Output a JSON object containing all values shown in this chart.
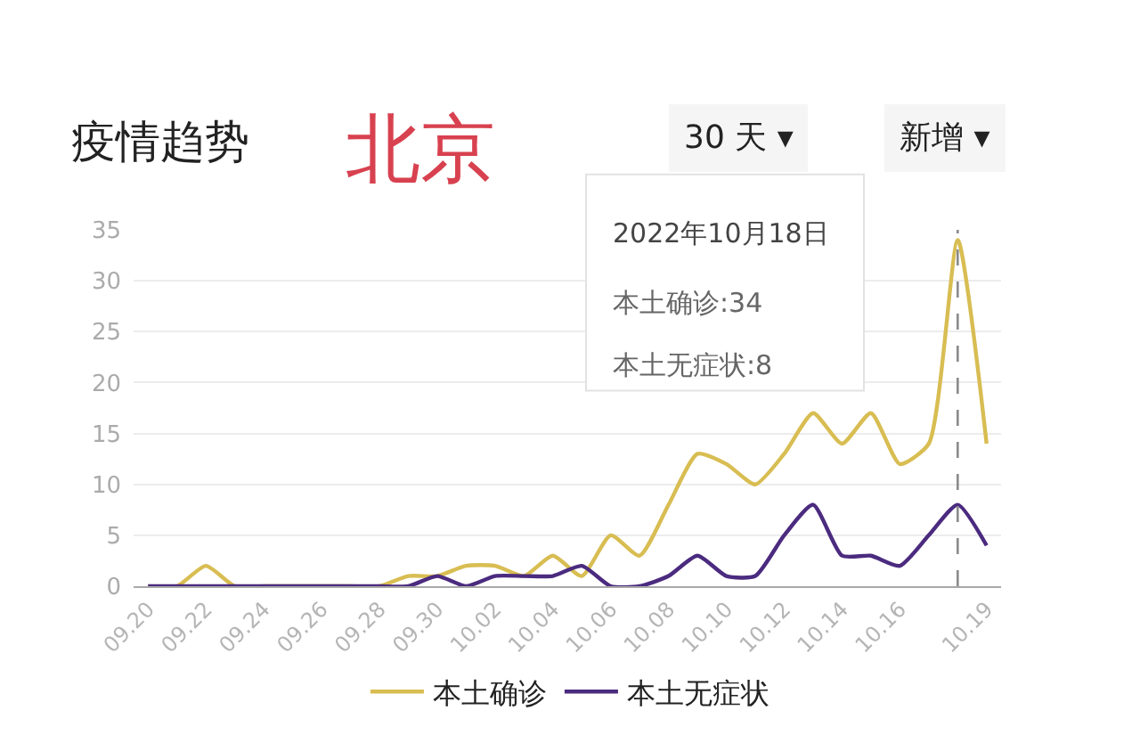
{
  "chart_data": {
    "type": "line",
    "title": "疫情趋势",
    "subtitle": "北京",
    "x": [
      "2022-09-20",
      "2022-09-21",
      "2022-09-22",
      "2022-09-23",
      "2022-09-24",
      "2022-09-25",
      "2022-09-26",
      "2022-09-27",
      "2022-09-28",
      "2022-09-29",
      "2022-09-30",
      "2022-10-01",
      "2022-10-02",
      "2022-10-03",
      "2022-10-04",
      "2022-10-05",
      "2022-10-06",
      "2022-10-07",
      "2022-10-08",
      "2022-10-09",
      "2022-10-10",
      "2022-10-11",
      "2022-10-12",
      "2022-10-13",
      "2022-10-14",
      "2022-10-15",
      "2022-10-16",
      "2022-10-17",
      "2022-10-18",
      "2022-10-19"
    ],
    "series": [
      {
        "name": "本土确诊",
        "color": "#d8bd52",
        "values": [
          0,
          0,
          2,
          0,
          0,
          0,
          0,
          0,
          0,
          1,
          1,
          2,
          2,
          1,
          3,
          1,
          5,
          3,
          8,
          13,
          12,
          10,
          13,
          17,
          14,
          17,
          12,
          14,
          34,
          14
        ]
      },
      {
        "name": "本土无症状",
        "color": "#4b2b7f",
        "values": [
          0,
          0,
          0,
          0,
          0,
          0,
          0,
          0,
          0,
          0,
          1,
          0,
          1,
          1,
          1,
          2,
          0,
          0,
          1,
          3,
          1,
          1,
          5,
          8,
          3,
          3,
          2,
          5,
          8,
          4
        ]
      }
    ],
    "xlim": [
      "2022-09-19T12:00",
      "2022-10-19T12:00"
    ],
    "xticks": [
      {
        "value": "2022-09-20",
        "label": "09.20"
      },
      {
        "value": "2022-09-22",
        "label": "09.22"
      },
      {
        "value": "2022-09-24",
        "label": "09.24"
      },
      {
        "value": "2022-09-26",
        "label": "09.26"
      },
      {
        "value": "2022-09-28",
        "label": "09.28"
      },
      {
        "value": "2022-09-30",
        "label": "09.30"
      },
      {
        "value": "2022-10-02",
        "label": "10.02"
      },
      {
        "value": "2022-10-04",
        "label": "10.04"
      },
      {
        "value": "2022-10-06",
        "label": "10.06"
      },
      {
        "value": "2022-10-08",
        "label": "10.08"
      },
      {
        "value": "2022-10-10",
        "label": "10.10"
      },
      {
        "value": "2022-10-12",
        "label": "10.12"
      },
      {
        "value": "2022-10-14",
        "label": "10.14"
      },
      {
        "value": "2022-10-16",
        "label": "10.16"
      },
      {
        "value": "2022-10-19",
        "label": "10.19"
      }
    ],
    "ylim": [
      0,
      35
    ],
    "yticks": [
      0,
      5,
      10,
      15,
      20,
      25,
      30,
      35
    ],
    "grid": "y",
    "legend": "bottom",
    "ref_lines": [
      {
        "axis": "x",
        "value": "2022-10-18",
        "color": "#8a8a8a",
        "line_style": "dashed"
      }
    ],
    "annotations": [
      "30 天 ▾",
      "新增 ▾",
      "2022年10月18日",
      "本土确诊:34",
      "本土无症状:8"
    ]
  }
}
